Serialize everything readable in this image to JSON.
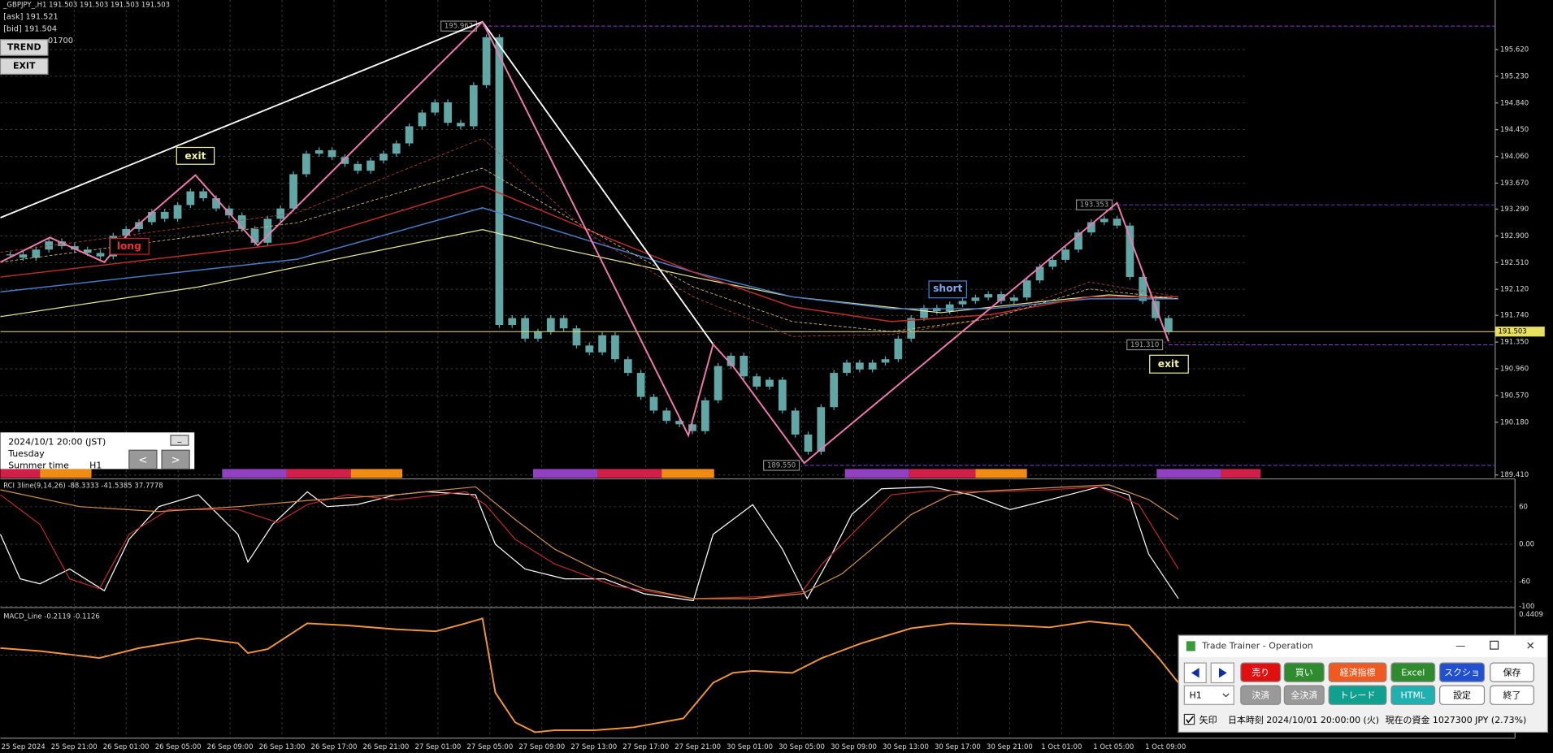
{
  "header": {
    "symbol": "_GBPJPY_,H1  191.503 191.503 191.503 191.503",
    "ask": "[ask] 191.521",
    "bid": "[bid] 191.504",
    "counter": "01700",
    "trend_button": "TREND",
    "exit_button": "EXIT"
  },
  "info_panel": {
    "datetime": "2024/10/1 20:00 (JST)",
    "weekday": "Tuesday",
    "season": "Summer time",
    "timeframe": "H1",
    "prev": "<",
    "next": ">",
    "minimize": "_"
  },
  "signals": {
    "long": "long",
    "exit_1": "exit",
    "short": "short",
    "exit_2": "exit"
  },
  "chart_data": {
    "type": "candlestick",
    "color": "#62a6a6",
    "x": [
      "25 Sep 2024",
      "25 Sep 21:00",
      "26 Sep 01:00",
      "26 Sep 05:00",
      "26 Sep 09:00",
      "26 Sep 13:00",
      "26 Sep 17:00",
      "26 Sep 21:00",
      "27 Sep 01:00",
      "27 Sep 05:00",
      "27 Sep 09:00",
      "27 Sep 13:00",
      "27 Sep 17:00",
      "27 Sep 21:00",
      "30 Sep 01:00",
      "30 Sep 05:00",
      "30 Sep 09:00",
      "30 Sep 13:00",
      "30 Sep 17:00",
      "30 Sep 21:00",
      "1 Oct 01:00",
      "1 Oct 05:00",
      "1 Oct 09:00"
    ],
    "closes": [
      192.63,
      192.58,
      192.7,
      192.82,
      192.75,
      192.7,
      192.65,
      192.6,
      192.9,
      193.0,
      193.1,
      193.25,
      193.15,
      193.35,
      193.55,
      193.45,
      193.3,
      193.2,
      193.0,
      192.8,
      193.15,
      193.3,
      193.8,
      194.1,
      194.15,
      194.05,
      193.95,
      193.85,
      194.0,
      194.1,
      194.25,
      194.5,
      194.7,
      194.85,
      194.55,
      194.5,
      195.1,
      195.8,
      191.6,
      191.7,
      191.4,
      191.5,
      191.7,
      191.55,
      191.3,
      191.2,
      191.45,
      191.1,
      190.9,
      190.55,
      190.35,
      190.2,
      190.15,
      190.05,
      190.5,
      191.0,
      191.15,
      190.85,
      190.7,
      190.8,
      190.35,
      190.0,
      189.75,
      190.4,
      190.9,
      191.05,
      190.95,
      191.05,
      191.1,
      191.4,
      191.7,
      191.85,
      191.8,
      191.9,
      191.95,
      192.0,
      192.05,
      191.95,
      192.0,
      192.25,
      192.45,
      192.55,
      192.7,
      192.95,
      193.1,
      193.15,
      193.05,
      192.3,
      191.95,
      191.7,
      191.503
    ],
    "ylim": [
      189.367,
      196.343
    ],
    "yticks": [
      {
        "value": 195.62,
        "label": "195.620"
      },
      {
        "value": 195.23,
        "label": "195.230"
      },
      {
        "value": 194.84,
        "label": "194.840"
      },
      {
        "value": 194.45,
        "label": "194.450"
      },
      {
        "value": 194.06,
        "label": "194.060"
      },
      {
        "value": 193.67,
        "label": "193.670"
      },
      {
        "value": 193.29,
        "label": "193.290"
      },
      {
        "value": 192.9,
        "label": "192.900"
      },
      {
        "value": 192.51,
        "label": "192.510"
      },
      {
        "value": 192.12,
        "label": "192.120"
      },
      {
        "value": 191.74,
        "label": "191.740"
      },
      {
        "value": 191.35,
        "label": "191.350"
      },
      {
        "value": 190.96,
        "label": "190.960"
      },
      {
        "value": 190.57,
        "label": "190.570"
      },
      {
        "value": 190.18,
        "label": "190.180"
      },
      {
        "value": 189.41,
        "label": "189.410"
      }
    ],
    "current_price": 191.503,
    "swings": [
      195.962,
      {
        "value": 193.353,
        "label": "193.353"
      },
      {
        "value": 191.31,
        "label": "191.310"
      },
      {
        "value": 189.55,
        "label": "189.550"
      }
    ],
    "grid": true
  },
  "indicators": {
    "rci": {
      "label": "RCI 3line(9,14,26) -88.3333 -41.5385 37.7778",
      "ylim": [
        -100,
        100
      ],
      "yticks": [
        60,
        {
          "value": 0,
          "label": "0.00"
        },
        -60,
        -100
      ]
    },
    "macd": {
      "label": "MACD_Line -0.2119 -0.1126",
      "top_label": 0.4409
    }
  },
  "dialog": {
    "title": "Trade Trainer - Operation",
    "row1": [
      "売り",
      "買い",
      "経済指標",
      "Excel",
      "スクショ",
      "保存"
    ],
    "row2": [
      "決済",
      "全決済",
      "トレード",
      "HTML",
      "設定",
      "終了"
    ],
    "timeframe": "H1",
    "arrow_check": "矢印",
    "time": "日本時刻 2024/10/01 20:00:00 (火)",
    "balance": "現在の資金 1027300 JPY (2.73%)"
  }
}
